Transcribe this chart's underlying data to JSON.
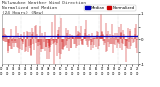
{
  "title_line1": "Milwaukee Weather Wind Direction",
  "title_line2": "Normalized and Median",
  "title_line3": "(24 Hours) (New)",
  "n_points": 288,
  "y_min": -1.0,
  "y_max": 1.0,
  "median_value": 0.12,
  "bar_color": "#cc0000",
  "median_color": "#0000bb",
  "bg_color": "#ffffff",
  "grid_color": "#bbbbbb",
  "title_color": "#333333",
  "title_fontsize": 3.2,
  "legend_fontsize": 2.8,
  "legend_label_norm": "Normalized",
  "legend_label_med": "Median",
  "y_ticks": [
    -1.0,
    -0.5,
    0.0,
    0.5,
    1.0
  ],
  "y_tick_labels": [
    "-1",
    "",
    "0",
    "",
    "1"
  ],
  "seed": 42
}
